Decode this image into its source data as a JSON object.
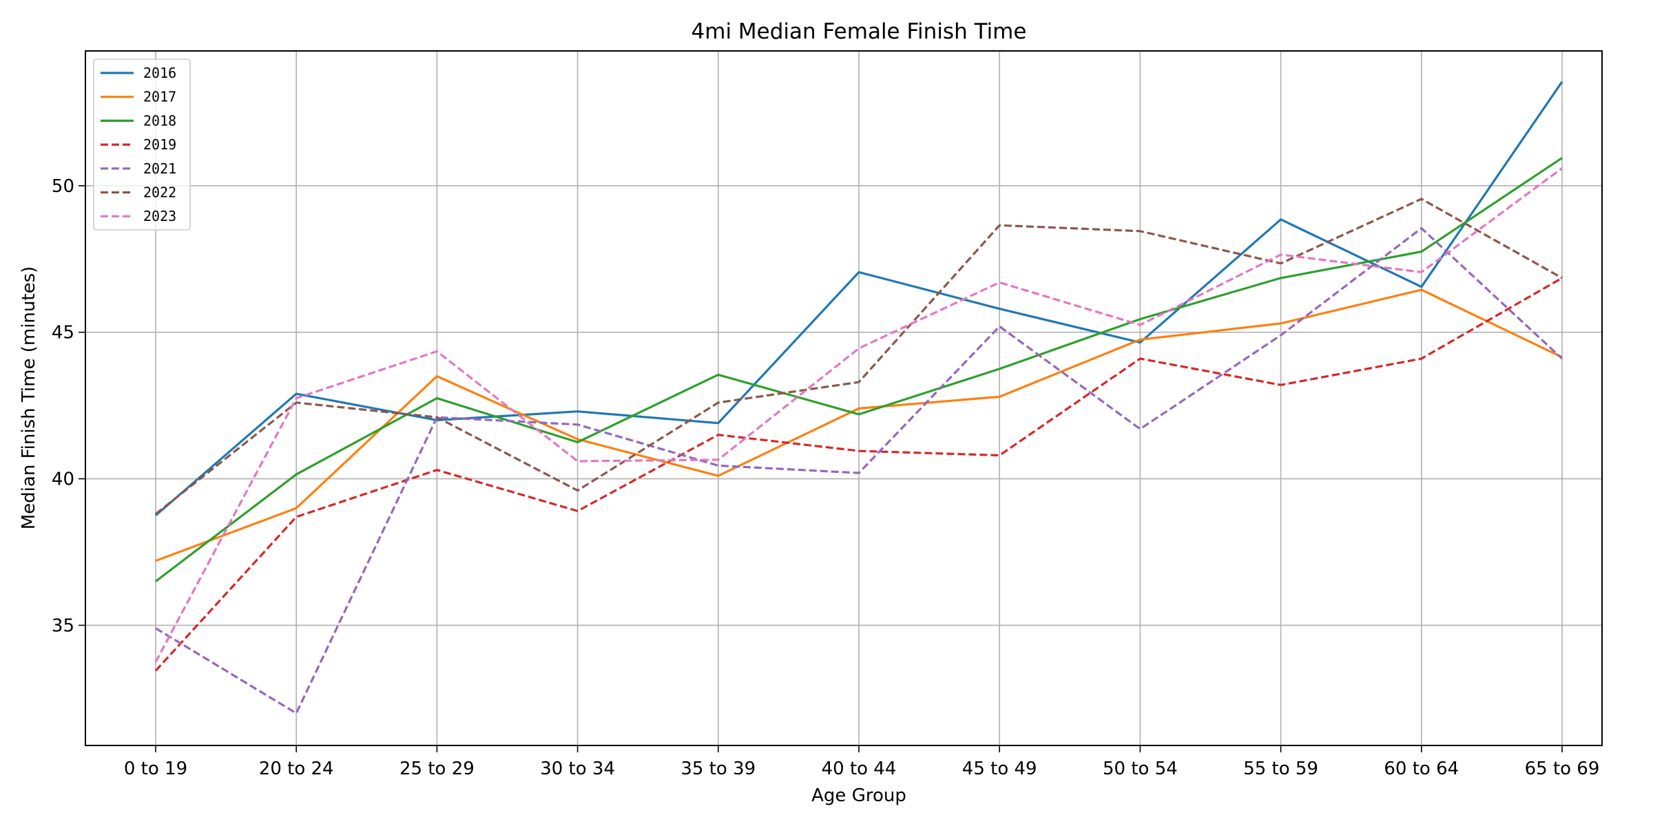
{
  "chart_data": {
    "type": "line",
    "title": "4mi Median Female Finish Time",
    "xlabel": "Age Group",
    "ylabel": "Median Finish Time (minutes)",
    "categories": [
      "0 to 19",
      "20 to 24",
      "25 to 29",
      "30 to 34",
      "35 to 39",
      "40 to 44",
      "45 to 49",
      "50 to 54",
      "55 to 59",
      "60 to 64",
      "65 to 69"
    ],
    "ylim": [
      30.9,
      54.6
    ],
    "yticks": [
      35,
      40,
      45,
      50
    ],
    "grid": true,
    "legend_position": "top-left",
    "series": [
      {
        "name": "2016",
        "color": "#1f77b4",
        "dash": "solid",
        "values": [
          38.75,
          42.9,
          42.0,
          42.3,
          41.9,
          47.05,
          45.8,
          44.65,
          48.85,
          46.55,
          53.55
        ]
      },
      {
        "name": "2017",
        "color": "#ff7f0e",
        "dash": "solid",
        "values": [
          37.2,
          39.0,
          43.5,
          41.35,
          40.1,
          42.4,
          42.8,
          44.75,
          45.3,
          46.45,
          44.15
        ]
      },
      {
        "name": "2018",
        "color": "#2ca02c",
        "dash": "solid",
        "values": [
          36.5,
          40.15,
          42.75,
          41.25,
          43.55,
          42.2,
          43.75,
          45.45,
          46.85,
          47.75,
          50.95
        ]
      },
      {
        "name": "2019",
        "color": "#d62728",
        "dash": "dashed",
        "values": [
          33.45,
          38.7,
          40.3,
          38.9,
          41.5,
          40.95,
          40.8,
          44.1,
          43.2,
          44.1,
          46.85
        ]
      },
      {
        "name": "2021",
        "color": "#9467bd",
        "dash": "dashed",
        "values": [
          34.9,
          32.0,
          42.1,
          41.85,
          40.45,
          40.2,
          45.2,
          41.7,
          44.9,
          48.55,
          44.1
        ]
      },
      {
        "name": "2022",
        "color": "#8c564b",
        "dash": "dashed",
        "values": [
          38.8,
          42.6,
          42.1,
          39.6,
          42.6,
          43.3,
          48.65,
          48.45,
          47.35,
          49.55,
          46.85
        ]
      },
      {
        "name": "2023",
        "color": "#e377c2",
        "dash": "dashed",
        "values": [
          33.75,
          42.75,
          44.35,
          40.6,
          40.65,
          44.45,
          46.7,
          45.25,
          47.65,
          47.05,
          50.6
        ]
      }
    ]
  }
}
